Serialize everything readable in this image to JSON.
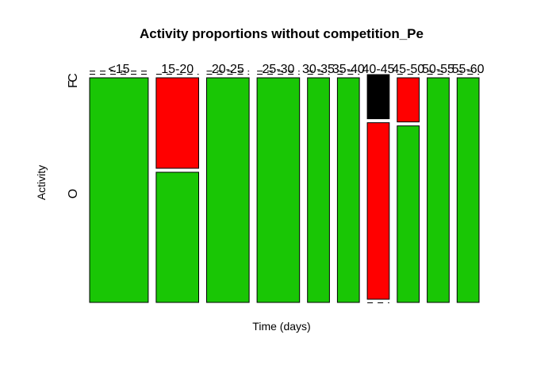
{
  "chart_data": {
    "type": "mosaic",
    "title": "Activity proportions without competition_Pe",
    "xlabel": "Time (days)",
    "ylabel": "Activity",
    "categories": [
      "<15",
      "15-20",
      "20-25",
      "25-30",
      "30-35",
      "35-40",
      "40-45",
      "45-50",
      "50-55",
      "55-60"
    ],
    "column_widths": [
      2,
      1.45,
      1.45,
      1.45,
      0.75,
      0.75,
      0.75,
      0.75,
      0.75,
      0.75
    ],
    "activity_levels": [
      "O",
      "F",
      "C"
    ],
    "series": [
      {
        "name": "O",
        "color": "#19c605",
        "values": [
          1.0,
          0.59,
          1.0,
          1.0,
          1.0,
          1.0,
          0.0,
          0.8,
          1.0,
          1.0
        ]
      },
      {
        "name": "F",
        "color": "#ff0000",
        "values": [
          0.0,
          0.41,
          0.0,
          0.0,
          0.0,
          0.0,
          0.8,
          0.2,
          0.0,
          0.0
        ]
      },
      {
        "name": "C",
        "color": "#000000",
        "values": [
          0.0,
          0.0,
          0.0,
          0.0,
          0.0,
          0.0,
          0.2,
          0.0,
          0.0,
          0.0
        ]
      }
    ],
    "ytick_labels": [
      "O",
      "F",
      "C"
    ],
    "grid": false,
    "legend": "none"
  }
}
